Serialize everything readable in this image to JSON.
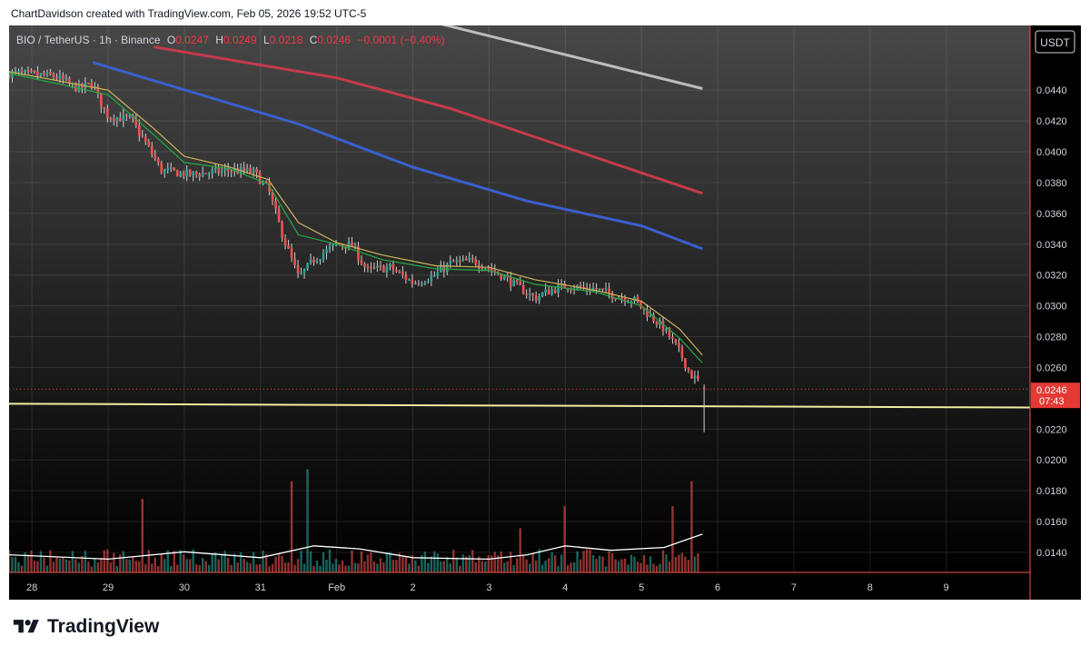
{
  "header": {
    "text": "ChartDavidson created with TradingView.com, Feb 05, 2026 19:52 UTC-5"
  },
  "legend": {
    "symbol": "BIO / TetherUS · 1h · Binance",
    "o_label": "O",
    "o_value": "0.0247",
    "h_label": "H",
    "h_value": "0.0249",
    "l_label": "L",
    "l_value": "0.0218",
    "c_label": "C",
    "c_value": "0.0246",
    "change": "−0.0001 (−0.40%)"
  },
  "footer": {
    "brand": "TradingView"
  },
  "colors": {
    "background": "#000000",
    "grid": "#2a2e39",
    "text": "#d1d4dc",
    "up": "#26a69a",
    "down": "#ef5350",
    "ema_fast": "#22ab45",
    "ema_mid": "#c9b458",
    "ema_blue": "#3a5fcd",
    "ema_red": "#c73a4a",
    "ema_white": "#bdbdbd",
    "support_line": "#f3eda2",
    "vol_ma": "#ffffff",
    "price_tag": "#e53935"
  },
  "chart_data": {
    "type": "candlestick",
    "title": "BIO / TetherUS · 1h · Binance",
    "currency": "USDT",
    "y_axis_ticks": [
      "0.0440",
      "0.0420",
      "0.0400",
      "0.0380",
      "0.0360",
      "0.0340",
      "0.0320",
      "0.0300",
      "0.0280",
      "0.0260",
      "0.0220",
      "0.0200",
      "0.0180",
      "0.0160",
      "0.0140"
    ],
    "y_tick_values": [
      0.044,
      0.042,
      0.04,
      0.038,
      0.036,
      0.034,
      0.032,
      0.03,
      0.028,
      0.026,
      0.022,
      0.02,
      0.018,
      0.016,
      0.014
    ],
    "ylim": [
      0.0127,
      0.0482
    ],
    "x_axis_labels": [
      "28",
      "29",
      "30",
      "31",
      "Feb",
      "2",
      "3",
      "4",
      "5",
      "6",
      "7",
      "8",
      "9"
    ],
    "x_label_days": [
      0,
      1,
      2,
      3,
      4,
      5,
      6,
      7,
      8,
      9,
      10,
      11,
      12
    ],
    "xlim_days": [
      -0.3,
      13.1
    ],
    "last_price": {
      "value": 0.0246,
      "label": "0.0246",
      "countdown": "07:43"
    },
    "ohlc_last": {
      "open": 0.0247,
      "high": 0.0249,
      "low": 0.0218,
      "close": 0.0246
    },
    "close_path": [
      [
        -0.3,
        0.0451
      ],
      [
        0.3,
        0.0449
      ],
      [
        0.6,
        0.0441
      ],
      [
        0.8,
        0.0444
      ],
      [
        0.9,
        0.0432
      ],
      [
        1.0,
        0.0423
      ],
      [
        1.3,
        0.0421
      ],
      [
        1.5,
        0.0405
      ],
      [
        1.7,
        0.0388
      ],
      [
        2.1,
        0.0385
      ],
      [
        2.4,
        0.0387
      ],
      [
        2.6,
        0.0388
      ],
      [
        2.9,
        0.0387
      ],
      [
        3.1,
        0.0376
      ],
      [
        3.3,
        0.0344
      ],
      [
        3.5,
        0.0318
      ],
      [
        3.7,
        0.033
      ],
      [
        4.0,
        0.034
      ],
      [
        4.2,
        0.0339
      ],
      [
        4.4,
        0.0323
      ],
      [
        4.7,
        0.0325
      ],
      [
        5.0,
        0.0315
      ],
      [
        5.3,
        0.032
      ],
      [
        5.5,
        0.0328
      ],
      [
        5.8,
        0.0329
      ],
      [
        6.1,
        0.0322
      ],
      [
        6.3,
        0.0315
      ],
      [
        6.6,
        0.0305
      ],
      [
        6.8,
        0.031
      ],
      [
        7.0,
        0.0313
      ],
      [
        7.4,
        0.0311
      ],
      [
        7.7,
        0.0306
      ],
      [
        7.9,
        0.0304
      ],
      [
        8.1,
        0.0294
      ],
      [
        8.3,
        0.0285
      ],
      [
        8.5,
        0.027
      ],
      [
        8.65,
        0.0255
      ],
      [
        8.78,
        0.025
      ]
    ],
    "moving_averages": [
      {
        "color": "ema_white",
        "points": [
          [
            4.3,
            0.0496
          ],
          [
            8.8,
            0.0441
          ]
        ]
      },
      {
        "color": "ema_red",
        "points": [
          [
            1.6,
            0.0468
          ],
          [
            4.0,
            0.0448
          ],
          [
            5.5,
            0.0428
          ],
          [
            7.0,
            0.0403
          ],
          [
            8.8,
            0.0373
          ]
        ]
      },
      {
        "color": "ema_blue",
        "points": [
          [
            0.8,
            0.0458
          ],
          [
            3.5,
            0.0418
          ],
          [
            5.0,
            0.039
          ],
          [
            6.5,
            0.0368
          ],
          [
            8.0,
            0.0352
          ],
          [
            8.8,
            0.0337
          ]
        ]
      },
      {
        "color": "ema_mid",
        "points": [
          [
            -0.3,
            0.0452
          ],
          [
            1.0,
            0.044
          ],
          [
            1.6,
            0.0415
          ],
          [
            2.0,
            0.0397
          ],
          [
            2.6,
            0.039
          ],
          [
            3.1,
            0.0382
          ],
          [
            3.5,
            0.0354
          ],
          [
            4.0,
            0.0341
          ],
          [
            4.6,
            0.0333
          ],
          [
            5.3,
            0.0326
          ],
          [
            6.0,
            0.0325
          ],
          [
            6.6,
            0.0317
          ],
          [
            7.4,
            0.031
          ],
          [
            8.0,
            0.0303
          ],
          [
            8.5,
            0.0285
          ],
          [
            8.8,
            0.0268
          ]
        ]
      },
      {
        "color": "ema_fast",
        "points": [
          [
            -0.3,
            0.0451
          ],
          [
            1.0,
            0.0437
          ],
          [
            1.6,
            0.0411
          ],
          [
            2.0,
            0.0393
          ],
          [
            2.6,
            0.0389
          ],
          [
            3.1,
            0.0379
          ],
          [
            3.5,
            0.0346
          ],
          [
            4.0,
            0.034
          ],
          [
            4.6,
            0.033
          ],
          [
            5.3,
            0.0324
          ],
          [
            6.0,
            0.0323
          ],
          [
            6.6,
            0.0314
          ],
          [
            7.4,
            0.0309
          ],
          [
            8.0,
            0.03
          ],
          [
            8.5,
            0.0279
          ],
          [
            8.8,
            0.0263
          ]
        ]
      }
    ],
    "support_line": [
      [
        -0.3,
        0.02365
      ],
      [
        13.1,
        0.0234
      ]
    ],
    "volume_spikes": [
      [
        1.45,
        0.5
      ],
      [
        3.4,
        0.62
      ],
      [
        3.6,
        0.7
      ],
      [
        6.4,
        0.3
      ],
      [
        7.0,
        0.45
      ],
      [
        8.4,
        0.45
      ],
      [
        8.65,
        0.62
      ],
      [
        8.78,
        1.0
      ]
    ],
    "volume_ma": [
      [
        -0.3,
        0.12
      ],
      [
        1.0,
        0.09
      ],
      [
        2.0,
        0.14
      ],
      [
        3.0,
        0.1
      ],
      [
        3.7,
        0.18
      ],
      [
        4.3,
        0.16
      ],
      [
        5.0,
        0.1
      ],
      [
        6.0,
        0.09
      ],
      [
        6.5,
        0.12
      ],
      [
        7.0,
        0.18
      ],
      [
        7.6,
        0.15
      ],
      [
        8.3,
        0.17
      ],
      [
        8.8,
        0.26
      ]
    ]
  }
}
